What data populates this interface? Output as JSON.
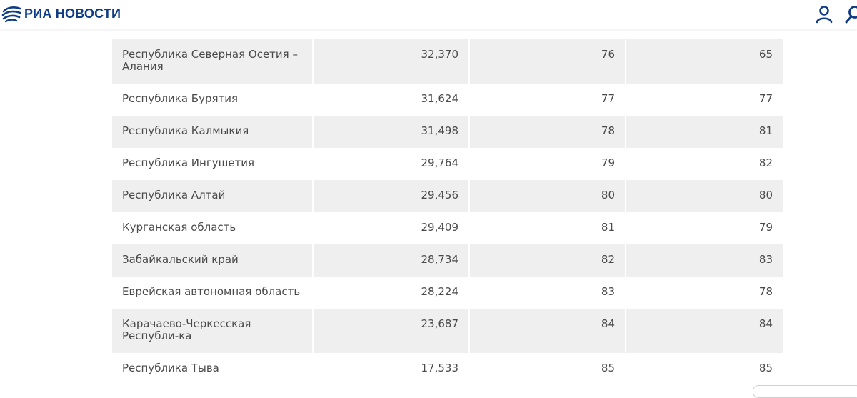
{
  "header": {
    "logo_text": "РИА НОВОСТИ",
    "logo_icon": "ria-globe-icon",
    "user_icon": "user-icon",
    "search_icon": "search-icon",
    "brand_color": "#0f3c84"
  },
  "table": {
    "rows": [
      {
        "region": "Республика Северная Осетия – Алания",
        "value": "32,370",
        "rank": "76",
        "prev_rank": "65"
      },
      {
        "region": "Республика Бурятия",
        "value": "31,624",
        "rank": "77",
        "prev_rank": "77"
      },
      {
        "region": "Республика Калмыкия",
        "value": "31,498",
        "rank": "78",
        "prev_rank": "81"
      },
      {
        "region": "Республика Ингушетия",
        "value": "29,764",
        "rank": "79",
        "prev_rank": "82"
      },
      {
        "region": "Республика Алтай",
        "value": "29,456",
        "rank": "80",
        "prev_rank": "80"
      },
      {
        "region": "Курганская область",
        "value": "29,409",
        "rank": "81",
        "prev_rank": "79"
      },
      {
        "region": "Забайкальский край",
        "value": "28,734",
        "rank": "82",
        "prev_rank": "83"
      },
      {
        "region": "Еврейская автономная область",
        "value": "28,224",
        "rank": "83",
        "prev_rank": "78"
      },
      {
        "region": "Карачаево-Черкесская Республи-ка",
        "value": "23,687",
        "rank": "84",
        "prev_rank": "84"
      },
      {
        "region": "Республика Тыва",
        "value": "17,533",
        "rank": "85",
        "prev_rank": "85"
      }
    ]
  }
}
